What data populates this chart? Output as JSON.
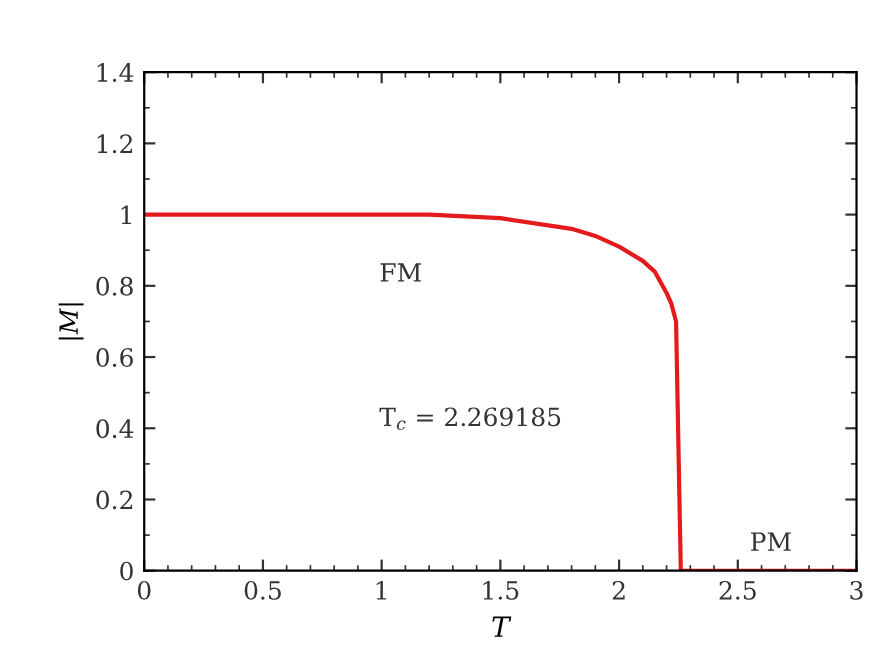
{
  "chart_data": {
    "type": "line",
    "xlabel": "T",
    "ylabel": "|M|",
    "x": [
      0,
      0.5,
      1.0,
      1.2,
      1.5,
      1.8,
      1.9,
      2.0,
      2.1,
      2.15,
      2.2,
      2.22,
      2.24,
      2.26,
      2.5,
      3.0
    ],
    "series": [
      {
        "color": "#e41a1c",
        "values": [
          1.0,
          1.0,
          1.0,
          1.0,
          0.99,
          0.96,
          0.94,
          0.91,
          0.87,
          0.84,
          0.78,
          0.75,
          0.7,
          0.0,
          0.0,
          0.0
        ]
      }
    ],
    "xlim": [
      0,
      3
    ],
    "xticks": [
      0,
      0.5,
      1,
      1.5,
      2,
      2.5,
      3
    ],
    "ylim": [
      0,
      1.4
    ],
    "yticks": [
      0,
      0.2,
      0.4,
      0.6,
      0.8,
      1,
      1.2,
      1.4
    ],
    "grid": false,
    "legend": false,
    "marker": "none",
    "line_style": "solid",
    "annotations": [
      "FM",
      "T$_{c}$ = 2.269185",
      "PM"
    ]
  }
}
